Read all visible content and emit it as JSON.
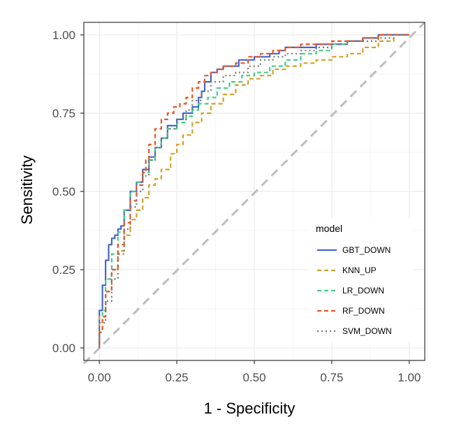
{
  "chart_data": {
    "type": "line",
    "xlabel": "1 - Specificity",
    "ylabel": "Sensitivity",
    "xlim": [
      -0.05,
      1.05
    ],
    "ylim": [
      -0.04,
      1.04
    ],
    "xticks": [
      0,
      0.25,
      0.5,
      0.75,
      1
    ],
    "xtick_labels": [
      "0.00",
      "0.25",
      "0.50",
      "0.75",
      "1.00"
    ],
    "yticks": [
      0,
      0.25,
      0.5,
      0.75,
      1
    ],
    "ytick_labels": [
      "0.00",
      "0.25",
      "0.50",
      "0.75",
      "1.00"
    ],
    "grid": true,
    "legend": {
      "title": "model",
      "position": "bottom-right-inside"
    },
    "reference_line": {
      "x": [
        0,
        1
      ],
      "y": [
        0,
        1
      ],
      "color": "#bdbdbd",
      "style": "dashed"
    },
    "series": [
      {
        "name": "GBT_DOWN",
        "color": "#4466cc",
        "style": "solid",
        "x": [
          0,
          0,
          0.01,
          0.02,
          0.03,
          0.04,
          0.05,
          0.06,
          0.07,
          0.08,
          0.1,
          0.12,
          0.14,
          0.16,
          0.18,
          0.2,
          0.22,
          0.25,
          0.27,
          0.3,
          0.32,
          0.33,
          0.34,
          0.36,
          0.38,
          0.4,
          0.43,
          0.45,
          0.5,
          0.55,
          0.58,
          0.6,
          0.65,
          0.7,
          0.75,
          0.8,
          0.85,
          0.9,
          0.95,
          1
        ],
        "y": [
          0,
          0.07,
          0.12,
          0.2,
          0.28,
          0.33,
          0.35,
          0.36,
          0.38,
          0.39,
          0.44,
          0.5,
          0.53,
          0.57,
          0.61,
          0.64,
          0.67,
          0.71,
          0.73,
          0.75,
          0.77,
          0.8,
          0.82,
          0.85,
          0.88,
          0.89,
          0.9,
          0.9,
          0.92,
          0.93,
          0.94,
          0.95,
          0.96,
          0.96,
          0.97,
          0.97,
          0.98,
          0.99,
          1,
          1
        ]
      },
      {
        "name": "KNN_UP",
        "color": "#d4a024",
        "style": "dashed",
        "x": [
          0,
          0.02,
          0.04,
          0.06,
          0.08,
          0.1,
          0.12,
          0.14,
          0.16,
          0.18,
          0.2,
          0.23,
          0.25,
          0.27,
          0.3,
          0.33,
          0.36,
          0.4,
          0.44,
          0.48,
          0.52,
          0.56,
          0.6,
          0.65,
          0.7,
          0.75,
          0.8,
          0.85,
          0.9,
          0.95,
          1
        ],
        "y": [
          0,
          0.1,
          0.18,
          0.25,
          0.31,
          0.36,
          0.41,
          0.44,
          0.48,
          0.52,
          0.54,
          0.57,
          0.62,
          0.65,
          0.68,
          0.72,
          0.75,
          0.78,
          0.81,
          0.84,
          0.86,
          0.87,
          0.89,
          0.9,
          0.91,
          0.92,
          0.93,
          0.94,
          0.96,
          0.98,
          1
        ]
      },
      {
        "name": "LR_DOWN",
        "color": "#44cc88",
        "style": "dashed",
        "x": [
          0,
          0.01,
          0.02,
          0.04,
          0.06,
          0.08,
          0.1,
          0.12,
          0.14,
          0.16,
          0.18,
          0.2,
          0.22,
          0.25,
          0.28,
          0.3,
          0.32,
          0.35,
          0.38,
          0.42,
          0.46,
          0.5,
          0.55,
          0.6,
          0.65,
          0.7,
          0.75,
          0.8,
          0.85,
          0.9,
          0.95,
          1
        ],
        "y": [
          0,
          0.06,
          0.12,
          0.22,
          0.3,
          0.37,
          0.44,
          0.5,
          0.53,
          0.56,
          0.6,
          0.64,
          0.67,
          0.7,
          0.72,
          0.74,
          0.76,
          0.78,
          0.8,
          0.83,
          0.85,
          0.87,
          0.88,
          0.9,
          0.92,
          0.94,
          0.95,
          0.97,
          0.98,
          0.99,
          1,
          1
        ]
      },
      {
        "name": "RF_DOWN",
        "color": "#ee5522",
        "style": "dashed",
        "x": [
          0,
          0.01,
          0.02,
          0.04,
          0.06,
          0.08,
          0.1,
          0.12,
          0.14,
          0.15,
          0.16,
          0.18,
          0.2,
          0.22,
          0.24,
          0.26,
          0.28,
          0.3,
          0.32,
          0.34,
          0.36,
          0.38,
          0.4,
          0.44,
          0.48,
          0.52,
          0.56,
          0.6,
          0.65,
          0.7,
          0.75,
          0.8,
          0.85,
          0.9,
          0.95,
          1
        ],
        "y": [
          0,
          0.05,
          0.1,
          0.18,
          0.25,
          0.33,
          0.4,
          0.47,
          0.52,
          0.56,
          0.6,
          0.65,
          0.7,
          0.73,
          0.75,
          0.77,
          0.78,
          0.8,
          0.83,
          0.85,
          0.87,
          0.88,
          0.89,
          0.9,
          0.91,
          0.93,
          0.94,
          0.95,
          0.96,
          0.97,
          0.97,
          0.98,
          0.98,
          0.99,
          1,
          1
        ]
      },
      {
        "name": "SVM_DOWN",
        "color": "#777777",
        "style": "dotted",
        "x": [
          0,
          0.02,
          0.04,
          0.06,
          0.08,
          0.1,
          0.12,
          0.14,
          0.16,
          0.18,
          0.2,
          0.22,
          0.25,
          0.28,
          0.3,
          0.33,
          0.36,
          0.4,
          0.44,
          0.48,
          0.52,
          0.56,
          0.6,
          0.65,
          0.7,
          0.75,
          0.8,
          0.85,
          0.9,
          0.95,
          1
        ],
        "y": [
          0,
          0.08,
          0.15,
          0.22,
          0.3,
          0.38,
          0.45,
          0.5,
          0.55,
          0.6,
          0.64,
          0.67,
          0.7,
          0.73,
          0.76,
          0.79,
          0.82,
          0.85,
          0.87,
          0.88,
          0.9,
          0.92,
          0.93,
          0.94,
          0.95,
          0.96,
          0.97,
          0.98,
          0.98,
          0.99,
          1
        ]
      }
    ]
  }
}
